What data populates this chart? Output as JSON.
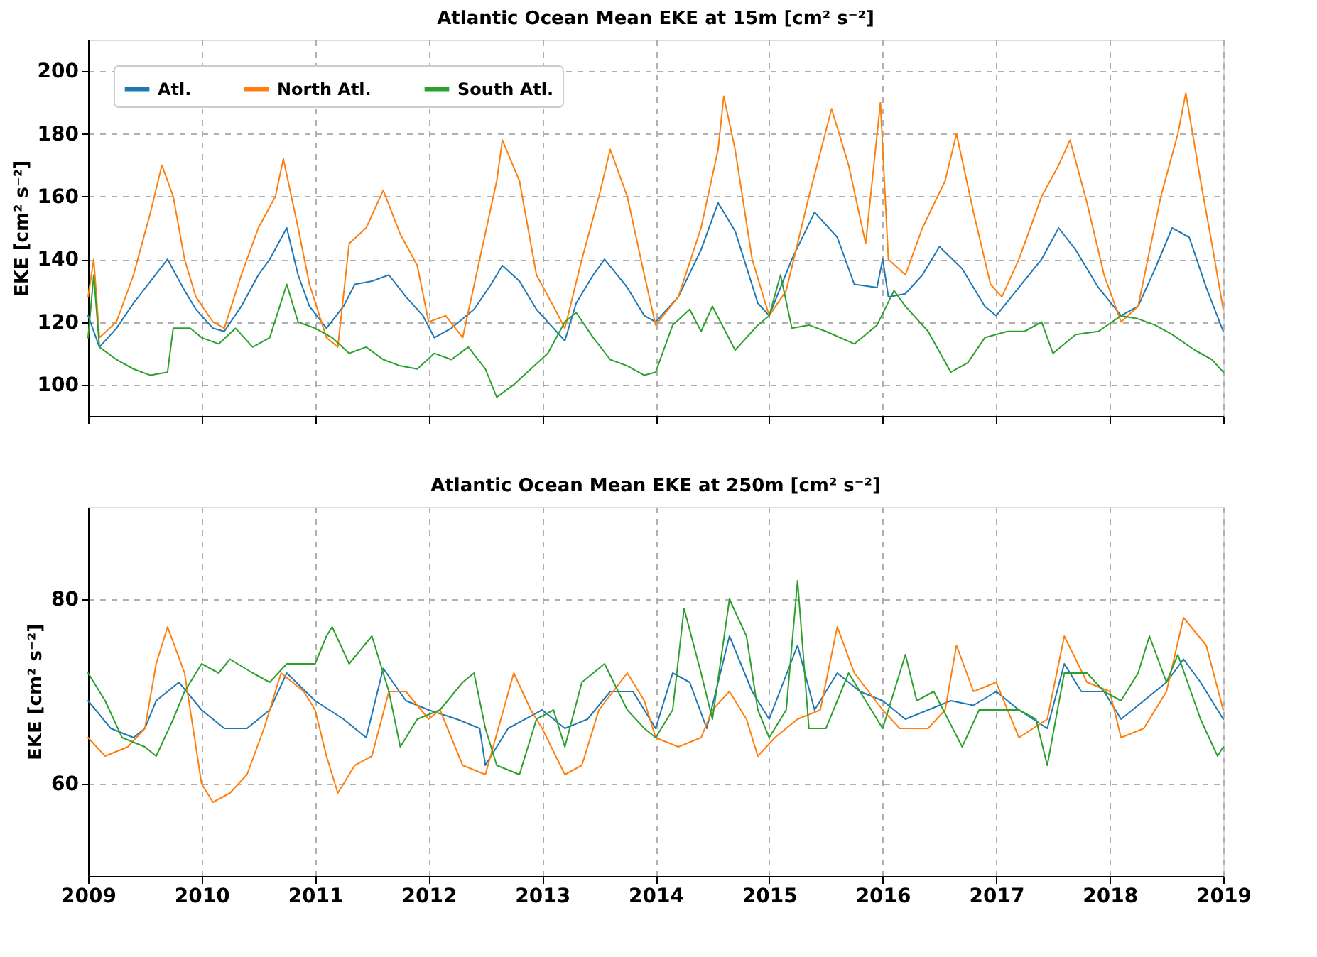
{
  "chart_data": [
    {
      "type": "line",
      "title": "Atlantic Ocean Mean EKE at 15m [cm² s⁻²]",
      "ylabel": "EKE [cm² s⁻²]",
      "xlim": [
        2009,
        2019
      ],
      "xticks": [
        2009,
        2010,
        2011,
        2012,
        2013,
        2014,
        2015,
        2016,
        2017,
        2018,
        2019
      ],
      "ylim": [
        90,
        210
      ],
      "yticks": [
        100,
        120,
        140,
        160,
        180,
        200
      ],
      "tick_labels": "y",
      "grid": true,
      "legend": "top left",
      "marker": "none",
      "line_style": "solid",
      "series": [
        {
          "name": "Atl.",
          "color": "#1f77b4",
          "x": [
            2009.0,
            2009.1,
            2009.25,
            2009.4,
            2009.55,
            2009.7,
            2009.85,
            2009.95,
            2010.1,
            2010.2,
            2010.35,
            2010.5,
            2010.6,
            2010.75,
            2010.85,
            2010.95,
            2011.1,
            2011.25,
            2011.35,
            2011.5,
            2011.65,
            2011.8,
            2011.95,
            2012.05,
            2012.2,
            2012.4,
            2012.55,
            2012.65,
            2012.8,
            2012.95,
            2013.1,
            2013.2,
            2013.3,
            2013.45,
            2013.55,
            2013.75,
            2013.9,
            2014.0,
            2014.2,
            2014.4,
            2014.55,
            2014.7,
            2014.9,
            2015.0,
            2015.2,
            2015.4,
            2015.6,
            2015.75,
            2015.95,
            2016.0,
            2016.05,
            2016.2,
            2016.35,
            2016.5,
            2016.7,
            2016.9,
            2017.0,
            2017.2,
            2017.4,
            2017.55,
            2017.7,
            2017.9,
            2018.1,
            2018.25,
            2018.4,
            2018.55,
            2018.7,
            2018.85,
            2019.0
          ],
          "values": [
            122,
            112,
            118,
            126,
            133,
            140,
            130,
            124,
            118,
            117,
            125,
            135,
            140,
            150,
            135,
            125,
            118,
            125,
            132,
            133,
            135,
            128,
            122,
            115,
            118,
            124,
            132,
            138,
            133,
            124,
            118,
            114,
            126,
            135,
            140,
            131,
            122,
            120,
            128,
            143,
            158,
            149,
            126,
            122,
            140,
            155,
            147,
            132,
            131,
            140,
            128,
            129,
            135,
            144,
            137,
            125,
            122,
            131,
            140,
            150,
            143,
            131,
            122,
            125,
            137,
            150,
            147,
            131,
            117
          ]
        },
        {
          "name": "North Atl.",
          "color": "#ff7f0e",
          "x": [
            2009.0,
            2009.05,
            2009.1,
            2009.25,
            2009.4,
            2009.55,
            2009.65,
            2009.75,
            2009.85,
            2009.95,
            2010.1,
            2010.2,
            2010.35,
            2010.5,
            2010.65,
            2010.72,
            2010.85,
            2010.95,
            2011.1,
            2011.2,
            2011.3,
            2011.45,
            2011.6,
            2011.75,
            2011.9,
            2012.0,
            2012.15,
            2012.3,
            2012.45,
            2012.6,
            2012.65,
            2012.8,
            2012.95,
            2013.1,
            2013.2,
            2013.35,
            2013.5,
            2013.6,
            2013.75,
            2013.9,
            2014.0,
            2014.2,
            2014.4,
            2014.55,
            2014.6,
            2014.7,
            2014.85,
            2015.0,
            2015.15,
            2015.35,
            2015.55,
            2015.7,
            2015.85,
            2015.98,
            2016.05,
            2016.2,
            2016.35,
            2016.55,
            2016.65,
            2016.8,
            2016.95,
            2017.05,
            2017.2,
            2017.4,
            2017.55,
            2017.65,
            2017.8,
            2017.95,
            2018.1,
            2018.25,
            2018.45,
            2018.6,
            2018.67,
            2018.8,
            2018.9,
            2019.0
          ],
          "values": [
            128,
            140,
            115,
            120,
            135,
            155,
            170,
            160,
            140,
            128,
            120,
            118,
            135,
            150,
            160,
            172,
            150,
            132,
            115,
            112,
            145,
            150,
            162,
            148,
            138,
            120,
            122,
            115,
            140,
            165,
            178,
            165,
            135,
            125,
            118,
            140,
            160,
            175,
            160,
            135,
            119,
            128,
            150,
            175,
            192,
            175,
            140,
            122,
            130,
            160,
            188,
            170,
            145,
            190,
            140,
            135,
            150,
            165,
            180,
            155,
            132,
            128,
            140,
            160,
            170,
            178,
            158,
            135,
            120,
            125,
            160,
            180,
            193,
            165,
            145,
            124
          ]
        },
        {
          "name": "South Atl.",
          "color": "#2ca02c",
          "x": [
            2009.0,
            2009.05,
            2009.1,
            2009.25,
            2009.4,
            2009.55,
            2009.7,
            2009.75,
            2009.9,
            2010.0,
            2010.15,
            2010.3,
            2010.45,
            2010.6,
            2010.75,
            2010.85,
            2011.0,
            2011.15,
            2011.3,
            2011.45,
            2011.6,
            2011.75,
            2011.9,
            2012.05,
            2012.2,
            2012.35,
            2012.5,
            2012.6,
            2012.75,
            2012.9,
            2013.05,
            2013.2,
            2013.3,
            2013.45,
            2013.6,
            2013.75,
            2013.9,
            2014.0,
            2014.15,
            2014.3,
            2014.4,
            2014.5,
            2014.7,
            2014.9,
            2015.0,
            2015.1,
            2015.2,
            2015.35,
            2015.5,
            2015.75,
            2015.95,
            2016.1,
            2016.2,
            2016.4,
            2016.6,
            2016.75,
            2016.9,
            2017.1,
            2017.25,
            2017.4,
            2017.5,
            2017.7,
            2017.9,
            2018.1,
            2018.25,
            2018.4,
            2018.55,
            2018.75,
            2018.9,
            2019.0
          ],
          "values": [
            115,
            135,
            112,
            108,
            105,
            103,
            104,
            118,
            118,
            115,
            113,
            118,
            112,
            115,
            132,
            120,
            118,
            115,
            110,
            112,
            108,
            106,
            105,
            110,
            108,
            112,
            105,
            96,
            100,
            105,
            110,
            120,
            123,
            115,
            108,
            106,
            103,
            104,
            119,
            124,
            117,
            125,
            111,
            119,
            122,
            135,
            118,
            119,
            117,
            113,
            119,
            130,
            125,
            117,
            104,
            107,
            115,
            117,
            117,
            120,
            110,
            116,
            117,
            122,
            121,
            119,
            116,
            111,
            108,
            104
          ]
        }
      ]
    },
    {
      "type": "line",
      "title": "Atlantic Ocean Mean EKE at 250m [cm² s⁻²]",
      "ylabel": "EKE [cm² s⁻²]",
      "xlim": [
        2009,
        2019
      ],
      "xticks": [
        2009,
        2010,
        2011,
        2012,
        2013,
        2014,
        2015,
        2016,
        2017,
        2018,
        2019
      ],
      "ylim": [
        50,
        90
      ],
      "yticks": [
        60,
        80
      ],
      "grid": true,
      "legend": "top left",
      "marker": "none",
      "line_style": "solid",
      "series": [
        {
          "name": "Atl.",
          "color": "#1f77b4",
          "x": [
            2009.0,
            2009.2,
            2009.4,
            2009.5,
            2009.6,
            2009.8,
            2010.0,
            2010.2,
            2010.4,
            2010.6,
            2010.75,
            2011.0,
            2011.25,
            2011.45,
            2011.6,
            2011.8,
            2012.0,
            2012.25,
            2012.45,
            2012.5,
            2012.7,
            2013.0,
            2013.2,
            2013.4,
            2013.6,
            2013.8,
            2014.0,
            2014.15,
            2014.3,
            2014.45,
            2014.65,
            2014.85,
            2015.0,
            2015.25,
            2015.4,
            2015.6,
            2015.8,
            2016.0,
            2016.2,
            2016.4,
            2016.6,
            2016.8,
            2017.0,
            2017.2,
            2017.45,
            2017.6,
            2017.75,
            2017.95,
            2018.1,
            2018.3,
            2018.5,
            2018.65,
            2018.8,
            2019.0
          ],
          "values": [
            69,
            66,
            65,
            66,
            69,
            71,
            68,
            66,
            66,
            68,
            72,
            69,
            67,
            65,
            72.5,
            69,
            68,
            67,
            66,
            62,
            66,
            68,
            66,
            67,
            70,
            70,
            66,
            72,
            71,
            66,
            76,
            70,
            67,
            75,
            68,
            72,
            70,
            69,
            67,
            68,
            69,
            68.5,
            70,
            68,
            66,
            73,
            70,
            70,
            67,
            69,
            71,
            73.5,
            71,
            67
          ]
        },
        {
          "name": "North Atl.",
          "color": "#ff7f0e",
          "x": [
            2009.0,
            2009.15,
            2009.35,
            2009.5,
            2009.6,
            2009.7,
            2009.85,
            2010.0,
            2010.1,
            2010.25,
            2010.4,
            2010.55,
            2010.7,
            2010.9,
            2011.0,
            2011.1,
            2011.2,
            2011.35,
            2011.5,
            2011.65,
            2011.8,
            2012.0,
            2012.1,
            2012.3,
            2012.5,
            2012.75,
            2012.9,
            2013.0,
            2013.2,
            2013.35,
            2013.5,
            2013.75,
            2013.9,
            2014.0,
            2014.2,
            2014.4,
            2014.5,
            2014.65,
            2014.8,
            2014.9,
            2015.05,
            2015.25,
            2015.45,
            2015.6,
            2015.75,
            2016.0,
            2016.15,
            2016.4,
            2016.55,
            2016.65,
            2016.8,
            2017.0,
            2017.2,
            2017.45,
            2017.6,
            2017.8,
            2018.0,
            2018.1,
            2018.3,
            2018.5,
            2018.65,
            2018.85,
            2019.0
          ],
          "values": [
            65,
            63,
            64,
            66,
            73,
            77,
            72,
            60,
            58,
            59,
            61,
            66,
            72,
            70,
            68,
            63,
            59,
            62,
            63,
            70,
            70,
            67,
            68,
            62,
            61,
            72,
            68,
            66,
            61,
            62,
            68,
            72,
            69,
            65,
            64,
            65,
            68,
            70,
            67,
            63,
            65,
            67,
            68,
            77,
            72,
            68,
            66,
            66,
            68,
            75,
            70,
            71,
            65,
            67,
            76,
            71,
            70,
            65,
            66,
            70,
            78,
            75,
            68
          ]
        },
        {
          "name": "South Atl.",
          "color": "#2ca02c",
          "x": [
            2009.0,
            2009.15,
            2009.3,
            2009.5,
            2009.6,
            2009.75,
            2009.85,
            2010.0,
            2010.15,
            2010.25,
            2010.45,
            2010.6,
            2010.75,
            2011.0,
            2011.1,
            2011.15,
            2011.3,
            2011.5,
            2011.65,
            2011.75,
            2011.9,
            2012.1,
            2012.3,
            2012.4,
            2012.5,
            2012.6,
            2012.8,
            2012.95,
            2013.1,
            2013.2,
            2013.35,
            2013.55,
            2013.75,
            2013.9,
            2014.0,
            2014.15,
            2014.25,
            2014.4,
            2014.5,
            2014.65,
            2014.8,
            2014.9,
            2015.0,
            2015.15,
            2015.25,
            2015.35,
            2015.5,
            2015.7,
            2015.9,
            2016.0,
            2016.2,
            2016.3,
            2016.45,
            2016.7,
            2016.85,
            2017.0,
            2017.2,
            2017.35,
            2017.45,
            2017.6,
            2017.8,
            2017.95,
            2018.1,
            2018.25,
            2018.35,
            2018.5,
            2018.6,
            2018.8,
            2018.95,
            2019.0
          ],
          "values": [
            72,
            69,
            65,
            64,
            63,
            67,
            70,
            73,
            72,
            73.5,
            72,
            71,
            73,
            73,
            76,
            77,
            73,
            76,
            70,
            64,
            67,
            68,
            71,
            72,
            66,
            62,
            61,
            67,
            68,
            64,
            71,
            73,
            68,
            66,
            65,
            68,
            79,
            72,
            67,
            80,
            76,
            68,
            65,
            68,
            82,
            66,
            66,
            72,
            68,
            66,
            74,
            69,
            70,
            64,
            68,
            68,
            68,
            67,
            62,
            72,
            72,
            70,
            69,
            72,
            76,
            71,
            74,
            67,
            63,
            64
          ]
        }
      ]
    }
  ]
}
